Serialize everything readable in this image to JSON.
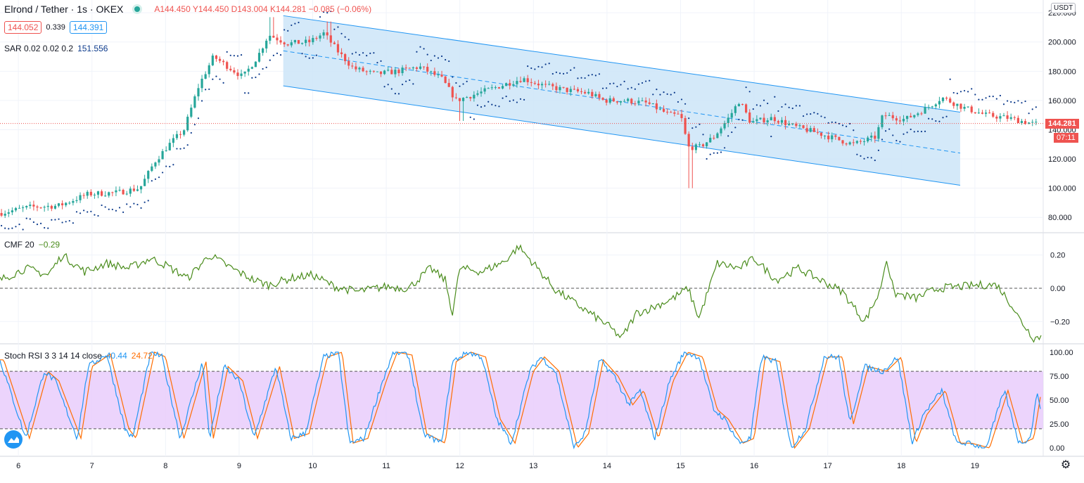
{
  "header": {
    "symbol": "Elrond / Tether · 1s · OKEX",
    "ohlc": "A144.450  Y144.450  D143.004  K144.281  −0.085 (−0.06%)",
    "bid": "144.052",
    "spread": "0.339",
    "ask": "144.391",
    "sar_label": "SAR 0.02 0.02 0.2",
    "sar_value": "151.556",
    "cmf_label": "CMF 20",
    "cmf_value": "−0.29",
    "stoch_label": "Stoch RSI 3 3 14 14 close",
    "stoch_k": "40.44",
    "stoch_d": "24.72"
  },
  "axis": {
    "unit_button": "USDT",
    "last_price": "144.281",
    "countdown": "07:11"
  },
  "colors": {
    "up": "#26a69a",
    "down": "#ef5350",
    "sar": "#0d3b8c",
    "channel_fill": "#cce5f8",
    "channel_line": "#2196f3",
    "cmf": "#4a8c1c",
    "stoch_k": "#2196f3",
    "stoch_d": "#ff6d00",
    "stoch_band": "#e7c9fb"
  },
  "icons": [
    "live-dot-icon",
    "tradingview-logo-icon",
    "settings-gear-icon"
  ],
  "chart_data": [
    {
      "type": "candlestick",
      "title": "Elrond / Tether · 1s · OKEX",
      "ylim": [
        70,
        222
      ],
      "yticks": [
        80,
        100,
        120,
        140,
        160,
        180,
        200,
        220
      ],
      "ytick_labels": [
        "80.000",
        "100.000",
        "120.000",
        "140.000",
        "160.000",
        "180.000",
        "200.000",
        "220.000"
      ],
      "x_range": [
        5.75,
        19.9
      ],
      "xticks": [
        6,
        7,
        8,
        9,
        10,
        11,
        12,
        13,
        14,
        15,
        16,
        17,
        18,
        19
      ],
      "close_path": [
        [
          5.8,
          83
        ],
        [
          6.2,
          87
        ],
        [
          6.6,
          88
        ],
        [
          7.0,
          96
        ],
        [
          7.4,
          97
        ],
        [
          7.7,
          100
        ],
        [
          7.9,
          118
        ],
        [
          8.1,
          130
        ],
        [
          8.3,
          140
        ],
        [
          8.5,
          170
        ],
        [
          8.7,
          190
        ],
        [
          8.9,
          183
        ],
        [
          9.1,
          176
        ],
        [
          9.3,
          190
        ],
        [
          9.45,
          205
        ],
        [
          9.7,
          199
        ],
        [
          10.0,
          200
        ],
        [
          10.2,
          206
        ],
        [
          10.4,
          193
        ],
        [
          10.6,
          182
        ],
        [
          10.9,
          178
        ],
        [
          11.2,
          180
        ],
        [
          11.5,
          183
        ],
        [
          11.8,
          175
        ],
        [
          12.0,
          160
        ],
        [
          12.3,
          165
        ],
        [
          12.6,
          170
        ],
        [
          12.9,
          175
        ],
        [
          13.2,
          170
        ],
        [
          13.5,
          167
        ],
        [
          13.8,
          165
        ],
        [
          14.0,
          160
        ],
        [
          14.3,
          160
        ],
        [
          14.6,
          158
        ],
        [
          14.9,
          150
        ],
        [
          15.05,
          150
        ],
        [
          15.15,
          128
        ],
        [
          15.3,
          128
        ],
        [
          15.5,
          135
        ],
        [
          15.7,
          148
        ],
        [
          15.85,
          160
        ],
        [
          16.0,
          145
        ],
        [
          16.3,
          148
        ],
        [
          16.6,
          142
        ],
        [
          16.9,
          138
        ],
        [
          17.2,
          133
        ],
        [
          17.4,
          130
        ],
        [
          17.7,
          135
        ],
        [
          17.8,
          150
        ],
        [
          18.1,
          147
        ],
        [
          18.4,
          155
        ],
        [
          18.6,
          162
        ],
        [
          18.9,
          155
        ],
        [
          19.2,
          150
        ],
        [
          19.5,
          148
        ],
        [
          19.85,
          144
        ]
      ],
      "series": [
        {
          "name": "Parabolic SAR 0.02 0.02 0.2",
          "last": 151.556
        },
        {
          "name": "Regression channel",
          "upper": [
            [
              9.6,
              218
            ],
            [
              18.8,
              152
            ]
          ],
          "mid": [
            [
              9.6,
              194
            ],
            [
              18.8,
              124
            ]
          ],
          "lower": [
            [
              9.6,
              170
            ],
            [
              18.8,
              102
            ]
          ]
        }
      ],
      "last_price": 144.281
    },
    {
      "type": "line",
      "title": "CMF 20",
      "last": -0.29,
      "ylim": [
        -0.33,
        0.33
      ],
      "yticks": [
        0.2,
        0.0,
        -0.2
      ],
      "ytick_labels": [
        "0.20",
        "0.00",
        "−0.20"
      ],
      "x": [
        5.75,
        6.1,
        6.4,
        6.6,
        6.9,
        7.2,
        7.5,
        7.8,
        8.0,
        8.3,
        8.6,
        8.9,
        9.2,
        9.4,
        9.7,
        10.0,
        10.3,
        10.6,
        11.0,
        11.3,
        11.6,
        11.8,
        11.9,
        12.0,
        12.3,
        12.6,
        12.8,
        13.0,
        13.3,
        13.6,
        14.0,
        14.2,
        14.4,
        14.6,
        14.9,
        15.1,
        15.25,
        15.5,
        15.8,
        16.0,
        16.3,
        16.6,
        16.9,
        17.2,
        17.5,
        17.7,
        17.8,
        17.9,
        18.2,
        18.5,
        18.8,
        19.1,
        19.3,
        19.5,
        19.6,
        19.8,
        19.9
      ],
      "values": [
        0.05,
        0.12,
        0.08,
        0.2,
        0.1,
        0.15,
        0.12,
        0.18,
        0.14,
        0.06,
        0.2,
        0.12,
        0.05,
        0.02,
        0.06,
        0.08,
        0.01,
        -0.02,
        0.01,
        0.0,
        0.12,
        0.05,
        -0.15,
        0.12,
        0.1,
        0.16,
        0.25,
        0.15,
        -0.01,
        -0.1,
        -0.22,
        -0.3,
        -0.15,
        -0.12,
        -0.06,
        0.0,
        -0.18,
        0.15,
        0.12,
        0.18,
        0.05,
        0.12,
        0.05,
        -0.02,
        -0.2,
        -0.03,
        0.18,
        -0.03,
        -0.06,
        0.0,
        0.01,
        0.02,
        0.02,
        -0.1,
        -0.18,
        -0.3,
        -0.29
      ]
    },
    {
      "type": "line",
      "title": "Stoch RSI 3 3 14 14 close",
      "ylim": [
        -8,
        108
      ],
      "yticks": [
        100,
        75,
        50,
        25,
        0
      ],
      "ytick_labels": [
        "100.00",
        "75.00",
        "50.00",
        "25.00",
        "0.00"
      ],
      "bands": [
        20,
        80
      ],
      "series": [
        {
          "name": "K",
          "last": 40.44,
          "x": [
            5.75,
            6.1,
            6.35,
            6.5,
            6.8,
            6.95,
            7.2,
            7.45,
            7.55,
            7.8,
            7.95,
            8.2,
            8.5,
            8.6,
            8.8,
            9.0,
            9.2,
            9.5,
            9.7,
            9.9,
            10.15,
            10.35,
            10.5,
            10.7,
            10.95,
            11.1,
            11.3,
            11.5,
            11.75,
            11.9,
            12.1,
            12.3,
            12.5,
            12.7,
            12.95,
            13.1,
            13.3,
            13.55,
            13.7,
            13.9,
            14.1,
            14.3,
            14.45,
            14.65,
            14.85,
            15.05,
            15.25,
            15.45,
            15.6,
            15.8,
            15.95,
            16.1,
            16.3,
            16.5,
            16.7,
            16.95,
            17.15,
            17.3,
            17.5,
            17.75,
            17.95,
            18.15,
            18.3,
            18.55,
            18.75,
            18.9,
            19.15,
            19.4,
            19.6,
            19.75,
            19.85,
            19.9
          ],
          "values": [
            92,
            10,
            80,
            70,
            10,
            85,
            98,
            20,
            10,
            100,
            95,
            10,
            90,
            10,
            85,
            70,
            10,
            85,
            10,
            15,
            95,
            100,
            5,
            10,
            70,
            100,
            97,
            15,
            5,
            90,
            100,
            95,
            30,
            5,
            80,
            95,
            80,
            0,
            15,
            92,
            75,
            45,
            60,
            10,
            70,
            100,
            95,
            40,
            30,
            5,
            10,
            95,
            90,
            0,
            20,
            95,
            95,
            25,
            85,
            80,
            95,
            5,
            35,
            60,
            5,
            5,
            0,
            60,
            5,
            10,
            58,
            40
          ]
        },
        {
          "name": "D",
          "last": 24.72
        }
      ]
    }
  ]
}
